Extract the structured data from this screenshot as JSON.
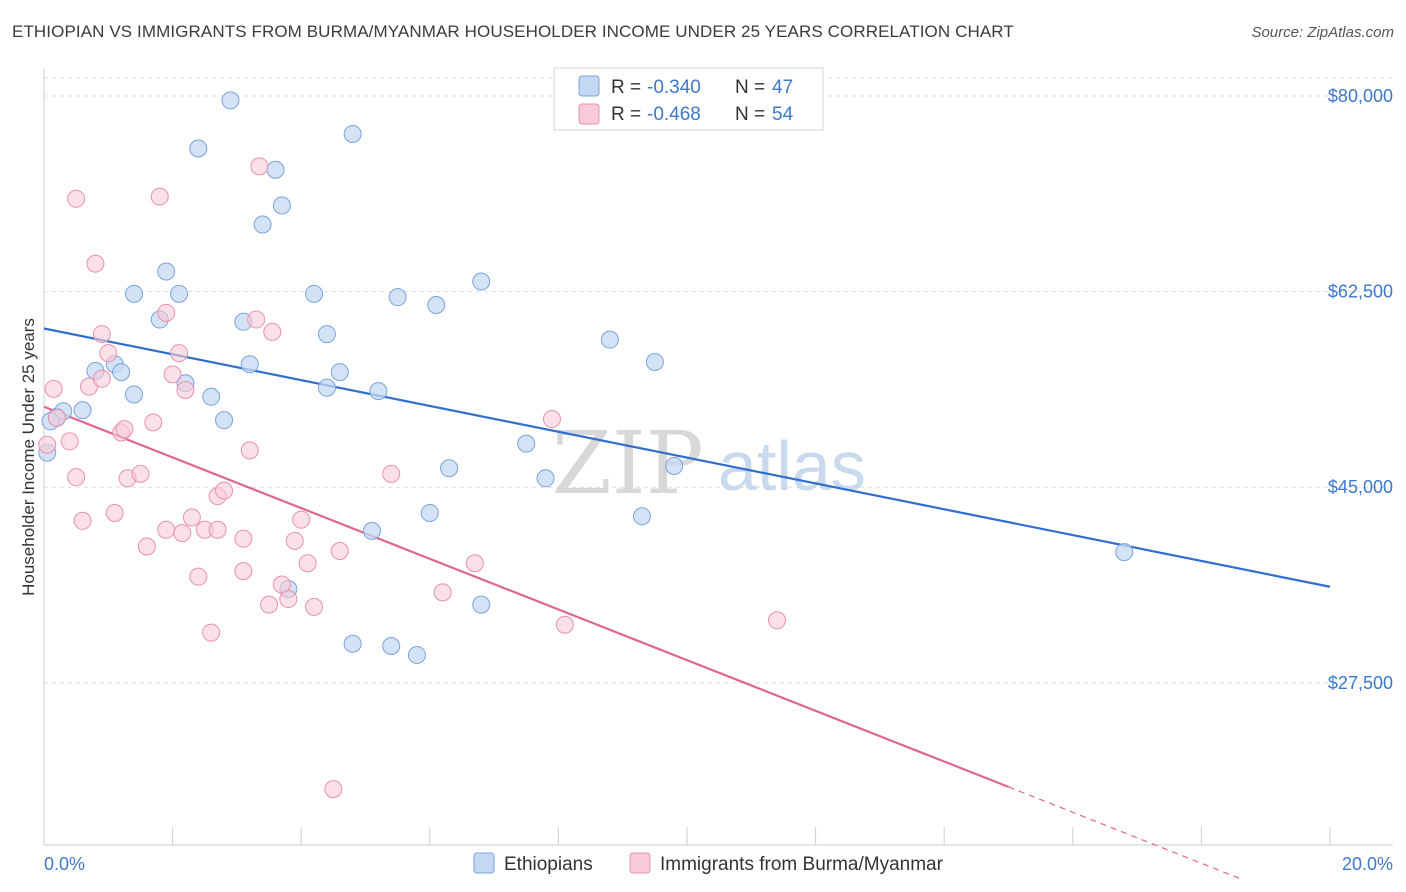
{
  "header": {
    "title": "ETHIOPIAN VS IMMIGRANTS FROM BURMA/MYANMAR HOUSEHOLDER INCOME UNDER 25 YEARS CORRELATION CHART",
    "source": "Source: ZipAtlas.com"
  },
  "watermark": {
    "zip": "ZIP",
    "atlas": "atlas"
  },
  "colors": {
    "ethiopians_fill": "#c5d8f3",
    "ethiopians_stroke": "#7aa3db",
    "ethiopians_line": "#2f6fcf",
    "burma_fill": "#f8cbd9",
    "burma_stroke": "#e891ad",
    "burma_line": "#e06592",
    "tick_text": "#3d78c9",
    "grid": "#dddddd"
  },
  "legend": {
    "rows": [
      {
        "r_label": "R = ",
        "r_value": "-0.340",
        "n_label": "N = ",
        "n_value": "47"
      },
      {
        "r_label": "R = ",
        "r_value": "-0.468",
        "n_label": "N = ",
        "n_value": "54"
      }
    ]
  },
  "chart_data": {
    "type": "scatter",
    "title": "ETHIOPIAN VS IMMIGRANTS FROM BURMA/MYANMAR HOUSEHOLDER INCOME UNDER 25 YEARS CORRELATION CHART",
    "xlabel": "",
    "ylabel": "Householder Income Under 25 years",
    "xlim": [
      0,
      20
    ],
    "ylim": [
      13000,
      82500
    ],
    "x_tick_labels": [
      "0.0%",
      "20.0%"
    ],
    "y_ticks": [
      27500,
      45000,
      62500,
      80000
    ],
    "y_tick_labels": [
      "$27,500",
      "$45,000",
      "$62,500",
      "$80,000"
    ],
    "grid": true,
    "legend_position": "top-center",
    "series": [
      {
        "name": "Ethiopians",
        "r": -0.34,
        "n": 47,
        "trend": {
          "x": [
            0.0,
            20.0
          ],
          "y": [
            59200,
            36100
          ]
        },
        "points": [
          [
            0.05,
            48100
          ],
          [
            0.2,
            51300
          ],
          [
            0.3,
            51800
          ],
          [
            0.6,
            51900
          ],
          [
            0.8,
            55400
          ],
          [
            1.1,
            56000
          ],
          [
            1.2,
            55300
          ],
          [
            1.4,
            53300
          ],
          [
            1.4,
            62300
          ],
          [
            1.8,
            60000
          ],
          [
            1.9,
            64300
          ],
          [
            2.1,
            62300
          ],
          [
            2.2,
            54300
          ],
          [
            2.4,
            75300
          ],
          [
            2.6,
            53100
          ],
          [
            2.8,
            51000
          ],
          [
            2.9,
            79600
          ],
          [
            3.1,
            59800
          ],
          [
            3.2,
            56000
          ],
          [
            3.4,
            68500
          ],
          [
            3.6,
            73400
          ],
          [
            3.7,
            70200
          ],
          [
            3.8,
            35900
          ],
          [
            4.2,
            62300
          ],
          [
            4.4,
            53900
          ],
          [
            4.4,
            58700
          ],
          [
            4.6,
            55300
          ],
          [
            4.8,
            31000
          ],
          [
            4.8,
            76600
          ],
          [
            5.1,
            41100
          ],
          [
            5.2,
            53600
          ],
          [
            5.4,
            30800
          ],
          [
            5.5,
            62000
          ],
          [
            5.8,
            30000
          ],
          [
            6.0,
            42700
          ],
          [
            6.1,
            61300
          ],
          [
            6.3,
            46700
          ],
          [
            6.8,
            34500
          ],
          [
            6.8,
            63400
          ],
          [
            7.5,
            48900
          ],
          [
            7.8,
            45800
          ],
          [
            8.8,
            58200
          ],
          [
            9.3,
            42400
          ],
          [
            9.5,
            56200
          ],
          [
            9.8,
            46900
          ],
          [
            16.8,
            39200
          ],
          [
            0.1,
            50900
          ]
        ]
      },
      {
        "name": "Immigrants from Burma/Myanmar",
        "r": -0.468,
        "n": 54,
        "trend": {
          "x": [
            0.0,
            15.0
          ],
          "y": [
            52200,
            18200
          ]
        },
        "trend_dashed": {
          "x": [
            15.0,
            18.6
          ],
          "y": [
            18200,
            10000
          ]
        },
        "points": [
          [
            0.05,
            48800
          ],
          [
            0.15,
            53800
          ],
          [
            0.2,
            51200
          ],
          [
            0.4,
            49100
          ],
          [
            0.5,
            70800
          ],
          [
            0.5,
            45900
          ],
          [
            0.6,
            42000
          ],
          [
            0.7,
            54000
          ],
          [
            0.8,
            65000
          ],
          [
            0.9,
            58700
          ],
          [
            0.9,
            54700
          ],
          [
            1.0,
            57000
          ],
          [
            1.1,
            42700
          ],
          [
            1.2,
            49900
          ],
          [
            1.25,
            50200
          ],
          [
            1.3,
            45800
          ],
          [
            1.5,
            46200
          ],
          [
            1.6,
            39700
          ],
          [
            1.7,
            50800
          ],
          [
            1.8,
            71000
          ],
          [
            1.9,
            60600
          ],
          [
            1.9,
            41200
          ],
          [
            2.0,
            55100
          ],
          [
            2.1,
            57000
          ],
          [
            2.15,
            40900
          ],
          [
            2.2,
            53700
          ],
          [
            2.3,
            42300
          ],
          [
            2.4,
            37000
          ],
          [
            2.5,
            41200
          ],
          [
            2.6,
            32000
          ],
          [
            2.7,
            41200
          ],
          [
            2.7,
            44200
          ],
          [
            2.8,
            44700
          ],
          [
            3.1,
            40400
          ],
          [
            3.1,
            37500
          ],
          [
            3.2,
            48300
          ],
          [
            3.3,
            60000
          ],
          [
            3.35,
            73700
          ],
          [
            3.5,
            34500
          ],
          [
            3.55,
            58900
          ],
          [
            3.7,
            36300
          ],
          [
            3.8,
            35000
          ],
          [
            3.9,
            40200
          ],
          [
            4.0,
            42100
          ],
          [
            4.1,
            38200
          ],
          [
            4.2,
            34300
          ],
          [
            4.5,
            18000
          ],
          [
            4.6,
            39300
          ],
          [
            5.4,
            46200
          ],
          [
            6.2,
            35600
          ],
          [
            6.7,
            38200
          ],
          [
            7.9,
            51100
          ],
          [
            8.1,
            32700
          ],
          [
            11.4,
            33100
          ]
        ]
      }
    ]
  },
  "bottom_legend": {
    "items": [
      "Ethiopians",
      "Immigrants from Burma/Myanmar"
    ]
  }
}
